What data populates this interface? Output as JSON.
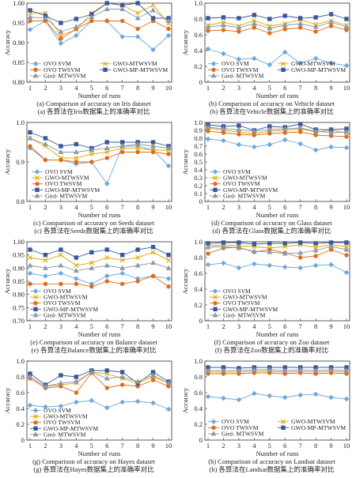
{
  "chart_data": [
    {
      "type": "line",
      "xlabel": "Number of runs",
      "ylabel": "Accuracy",
      "caption_en": "(a) Comparison of accuracy on Iris dataset",
      "caption_zh": "(a) 各算法在Iris数据集上的准确率对比",
      "x": [
        1,
        2,
        3,
        4,
        5,
        6,
        7,
        8,
        9,
        10
      ],
      "ylim": [
        0.8,
        1.0
      ],
      "yticks": [
        "0.80",
        "0.85",
        "0.90",
        "0.95",
        "1.00"
      ],
      "legend_cols": 2,
      "legend_corner": "bottom-right",
      "series": [
        {
          "name": "OVO SVM",
          "values": [
            0.933,
            0.955,
            0.898,
            0.918,
            0.955,
            0.955,
            0.915,
            0.915,
            0.882,
            0.918
          ]
        },
        {
          "name": "GWO-MTWSVM",
          "values": [
            0.975,
            0.975,
            0.918,
            0.933,
            0.975,
            1.0,
            0.995,
            0.975,
            0.995,
            0.948
          ]
        },
        {
          "name": "OVO TWSVM",
          "values": [
            0.955,
            0.955,
            0.91,
            0.935,
            0.955,
            0.955,
            0.955,
            0.935,
            0.955,
            0.935
          ]
        },
        {
          "name": "GWO-MP-MTWSVM",
          "values": [
            0.982,
            0.968,
            0.95,
            0.96,
            0.972,
            1.0,
            0.995,
            1.0,
            0.962,
            0.962
          ]
        },
        {
          "name": "Gird- MTWSVM",
          "values": [
            0.965,
            0.962,
            0.928,
            0.94,
            0.965,
            0.985,
            0.985,
            0.962,
            0.982,
            0.955
          ]
        }
      ]
    },
    {
      "type": "line",
      "xlabel": "Number of runs",
      "ylabel": "Accuracy",
      "caption_en": "(b) Comparison of accuracy on Vehicle dataset",
      "caption_zh": "(b) 各算法在Vehicle数据集上的准确率对比",
      "x": [
        1,
        2,
        3,
        4,
        5,
        6,
        7,
        8,
        9,
        10
      ],
      "ylim": [
        0.0,
        1.0
      ],
      "yticks": [
        "0",
        "0.2",
        "0.4",
        "0.6",
        "0.8",
        "1.0"
      ],
      "legend_cols": 2,
      "legend_corner": "bottom-right",
      "series": [
        {
          "name": "OVO SVM",
          "values": [
            0.42,
            0.36,
            0.29,
            0.3,
            0.22,
            0.38,
            0.24,
            0.3,
            0.24,
            0.21
          ]
        },
        {
          "name": "GWO-MTWSVM",
          "values": [
            0.72,
            0.76,
            0.71,
            0.78,
            0.71,
            0.74,
            0.79,
            0.73,
            0.78,
            0.72
          ]
        },
        {
          "name": "OVO TWSVM",
          "values": [
            0.65,
            0.66,
            0.64,
            0.69,
            0.62,
            0.67,
            0.69,
            0.64,
            0.71,
            0.66
          ]
        },
        {
          "name": "GWO-MP-MTWSVM",
          "values": [
            0.81,
            0.82,
            0.81,
            0.85,
            0.8,
            0.84,
            0.81,
            0.82,
            0.86,
            0.8
          ]
        },
        {
          "name": "Gird- MTWSVM",
          "values": [
            0.7,
            0.72,
            0.69,
            0.74,
            0.68,
            0.72,
            0.74,
            0.7,
            0.76,
            0.7
          ]
        }
      ]
    },
    {
      "type": "line",
      "xlabel": "Number of runs",
      "ylabel": "Accuracy",
      "caption_en": "(c) Comparison of accuracy on Seeds dataset",
      "caption_zh": "(c) 各算法在Seeds数据集上的准确率对比",
      "x": [
        1,
        2,
        3,
        4,
        5,
        6,
        7,
        8,
        9,
        10
      ],
      "ylim": [
        0.8,
        1.0
      ],
      "yticks": [
        "0.8",
        "0.9",
        "1.0"
      ],
      "legend_cols": 1,
      "legend_corner": "bottom-right",
      "series": [
        {
          "name": "OVO SVM",
          "values": [
            0.935,
            0.905,
            0.905,
            0.895,
            0.9,
            0.845,
            0.94,
            0.94,
            0.93,
            0.89
          ]
        },
        {
          "name": "GWO-MTWSVM",
          "values": [
            0.96,
            0.94,
            0.91,
            0.91,
            0.92,
            0.925,
            0.935,
            0.935,
            0.93,
            0.93
          ]
        },
        {
          "name": "OVO TWSVM",
          "values": [
            0.94,
            0.905,
            0.905,
            0.9,
            0.9,
            0.91,
            0.925,
            0.925,
            0.925,
            0.92
          ]
        },
        {
          "name": "GWO-MP-MTWSVM",
          "values": [
            0.975,
            0.96,
            0.94,
            0.945,
            0.935,
            0.95,
            0.95,
            0.95,
            0.95,
            0.94
          ]
        },
        {
          "name": "Gird- MTWSVM",
          "values": [
            0.96,
            0.945,
            0.925,
            0.925,
            0.93,
            0.935,
            0.94,
            0.945,
            0.94,
            0.935
          ]
        }
      ]
    },
    {
      "type": "line",
      "xlabel": "Number of runs",
      "ylabel": "Accuracy",
      "caption_en": "(d) Comparison of accuracy on Glass dataset",
      "caption_zh": "(d) 各算法在Glass数据集上的准确率对比",
      "x": [
        1,
        2,
        3,
        4,
        5,
        6,
        7,
        8,
        9,
        10
      ],
      "ylim": [
        0.0,
        1.0
      ],
      "yticks": [
        "0",
        "0.1",
        "0.2",
        "0.3",
        "0.4",
        "0.5",
        "0.6",
        "0.7",
        "0.8",
        "0.9",
        "1.0"
      ],
      "legend_cols": 1,
      "legend_corner": "bottom-right",
      "series": [
        {
          "name": "OVO SVM",
          "values": [
            0.79,
            0.77,
            0.72,
            0.69,
            0.72,
            0.78,
            0.73,
            0.65,
            0.69,
            0.68
          ]
        },
        {
          "name": "GWO-MTWSVM",
          "values": [
            0.93,
            0.9,
            0.88,
            0.86,
            0.89,
            0.9,
            0.92,
            0.88,
            0.9,
            0.87
          ]
        },
        {
          "name": "OVO TWSVM",
          "values": [
            0.89,
            0.87,
            0.85,
            0.84,
            0.86,
            0.87,
            0.88,
            0.84,
            0.83,
            0.82
          ]
        },
        {
          "name": "GWO-MP-MTWSVM",
          "values": [
            0.97,
            0.95,
            0.96,
            0.9,
            0.95,
            0.94,
            0.98,
            0.91,
            0.91,
            0.92
          ]
        },
        {
          "name": "Gird- MTWSVM",
          "values": [
            0.94,
            0.92,
            0.91,
            0.89,
            0.91,
            0.92,
            0.93,
            0.89,
            0.87,
            0.88
          ]
        }
      ]
    },
    {
      "type": "line",
      "xlabel": "Number of runs",
      "ylabel": "Accuracy",
      "caption_en": "(e) Comparison of accuracy on Balance dataset",
      "caption_zh": "(e) 各算法在Balance数据集上的准确率对比",
      "x": [
        1,
        2,
        3,
        4,
        5,
        6,
        7,
        8,
        9,
        10
      ],
      "ylim": [
        0.7,
        1.0
      ],
      "yticks": [
        "0.70",
        "0.75",
        "0.80",
        "0.85",
        "0.90",
        "0.95",
        "1.00"
      ],
      "legend_cols": 1,
      "legend_corner": "bottom-left",
      "series": [
        {
          "name": "OVO SVM",
          "values": [
            0.88,
            0.87,
            0.88,
            0.86,
            0.84,
            0.87,
            0.88,
            0.86,
            0.87,
            0.86
          ]
        },
        {
          "name": "GWO-MTWSVM",
          "values": [
            0.94,
            0.93,
            0.95,
            0.91,
            0.92,
            0.94,
            0.93,
            0.94,
            0.96,
            0.93
          ]
        },
        {
          "name": "OVO TWSVM",
          "values": [
            0.84,
            0.84,
            0.84,
            0.84,
            0.83,
            0.85,
            0.84,
            0.85,
            0.87,
            0.83
          ]
        },
        {
          "name": "GWO-MP-MTWSVM",
          "values": [
            0.97,
            0.95,
            0.97,
            0.94,
            0.96,
            0.97,
            0.95,
            0.97,
            0.98,
            0.95
          ]
        },
        {
          "name": "Gird- MTWSVM",
          "values": [
            0.91,
            0.9,
            0.91,
            0.89,
            0.9,
            0.91,
            0.9,
            0.91,
            0.92,
            0.9
          ]
        }
      ]
    },
    {
      "type": "line",
      "xlabel": "Number of runs",
      "ylabel": "Accuracy",
      "caption_en": "(f) Comparison of accuracy on Zoo dataset",
      "caption_zh": "(f) 各算法在Zoo数据集上的准确率对比",
      "x": [
        1,
        2,
        3,
        4,
        5,
        6,
        7,
        8,
        9,
        10
      ],
      "ylim": [
        0.0,
        1.0
      ],
      "yticks": [
        "0",
        "0.2",
        "0.4",
        "0.6",
        "0.8",
        "1.0"
      ],
      "legend_cols": 1,
      "legend_corner": "bottom-right",
      "series": [
        {
          "name": "OVO SVM",
          "values": [
            0.71,
            0.73,
            0.67,
            0.72,
            0.7,
            0.68,
            0.67,
            0.7,
            0.71,
            0.61
          ]
        },
        {
          "name": "GWO-MTWSVM",
          "values": [
            0.95,
            0.96,
            0.95,
            0.94,
            0.92,
            0.94,
            0.96,
            0.93,
            0.96,
            0.94
          ]
        },
        {
          "name": "OVO TWSVM",
          "values": [
            0.85,
            0.92,
            0.93,
            0.87,
            0.9,
            0.86,
            0.8,
            0.82,
            0.9,
            0.83
          ]
        },
        {
          "name": "GWO-MP-MTWSVM",
          "values": [
            0.98,
            0.99,
            0.99,
            0.97,
            0.98,
            0.98,
            0.99,
            0.98,
            0.99,
            0.99
          ]
        },
        {
          "name": "Gird- MTWSVM",
          "values": [
            0.93,
            0.94,
            0.92,
            0.88,
            0.87,
            0.85,
            0.86,
            0.89,
            0.94,
            0.9
          ]
        }
      ]
    },
    {
      "type": "line",
      "xlabel": "Number of runs",
      "ylabel": "Accuracy",
      "caption_en": "(g) Comparison of accuracy on Hayes dataset",
      "caption_zh": "(g) 各算法在Hayes数据集上的准确率对比",
      "x": [
        1,
        2,
        3,
        4,
        5,
        6,
        7,
        8,
        9,
        10
      ],
      "ylim": [
        0.0,
        1.0
      ],
      "yticks": [
        "0",
        "0.2",
        "0.4",
        "0.6",
        "0.8",
        "1.0"
      ],
      "legend_cols": 1,
      "legend_corner": "bottom-left",
      "series": [
        {
          "name": "OVO SVM",
          "values": [
            0.44,
            0.42,
            0.43,
            0.48,
            0.5,
            0.41,
            0.48,
            0.49,
            0.47,
            0.39
          ]
        },
        {
          "name": "GWO-MTWSVM",
          "values": [
            0.8,
            0.68,
            0.7,
            0.72,
            0.86,
            0.84,
            0.78,
            0.72,
            0.8,
            0.72
          ]
        },
        {
          "name": "OVO TWSVM",
          "values": [
            0.78,
            0.66,
            0.68,
            0.6,
            0.85,
            0.66,
            0.7,
            0.68,
            0.76,
            0.68
          ]
        },
        {
          "name": "GWO-MP-MTWSVM",
          "values": [
            0.84,
            0.7,
            0.82,
            0.8,
            0.88,
            0.88,
            0.86,
            0.72,
            0.86,
            0.74
          ]
        },
        {
          "name": "Gird- MTWSVM",
          "values": [
            0.8,
            0.68,
            0.72,
            0.74,
            0.86,
            0.78,
            0.8,
            0.74,
            0.82,
            0.72
          ]
        }
      ]
    },
    {
      "type": "line",
      "xlabel": "Number of runs",
      "ylabel": "Accuracy",
      "caption_en": "(h) Comparison of accuracy on Landsat dataset",
      "caption_zh": "(h) 各算法在Landsat数据集上的准确率对比",
      "x": [
        1,
        2,
        3,
        4,
        5,
        6,
        7,
        8,
        9,
        10
      ],
      "ylim": [
        0.0,
        1.0
      ],
      "yticks": [
        "0",
        "0.2",
        "0.4",
        "0.6",
        "0.8",
        "1.0"
      ],
      "legend_cols": 2,
      "legend_corner": "bottom-left",
      "series": [
        {
          "name": "OVO SVM",
          "values": [
            0.55,
            0.53,
            0.51,
            0.59,
            0.56,
            0.54,
            0.57,
            0.58,
            0.54,
            0.52
          ]
        },
        {
          "name": "GWO-MTWSVM",
          "values": [
            0.86,
            0.86,
            0.86,
            0.87,
            0.87,
            0.86,
            0.87,
            0.86,
            0.87,
            0.86
          ]
        },
        {
          "name": "OVO TWSVM",
          "values": [
            0.84,
            0.84,
            0.84,
            0.85,
            0.85,
            0.84,
            0.85,
            0.84,
            0.85,
            0.84
          ]
        },
        {
          "name": "GWO-MP-MTWSVM",
          "values": [
            0.92,
            0.92,
            0.91,
            0.92,
            0.92,
            0.92,
            0.92,
            0.92,
            0.92,
            0.92
          ]
        },
        {
          "name": "Gird- MTWSVM",
          "values": [
            0.88,
            0.88,
            0.88,
            0.89,
            0.89,
            0.88,
            0.89,
            0.88,
            0.89,
            0.88
          ]
        }
      ]
    }
  ],
  "series_style": [
    {
      "color": "#6fa8dc",
      "marker": "diamond"
    },
    {
      "color": "#e0a800",
      "marker": "x"
    },
    {
      "color": "#e06c1a",
      "marker": "circle"
    },
    {
      "color": "#3b5998",
      "marker": "square"
    },
    {
      "color": "#8c9aa8",
      "marker": "triangle"
    }
  ]
}
